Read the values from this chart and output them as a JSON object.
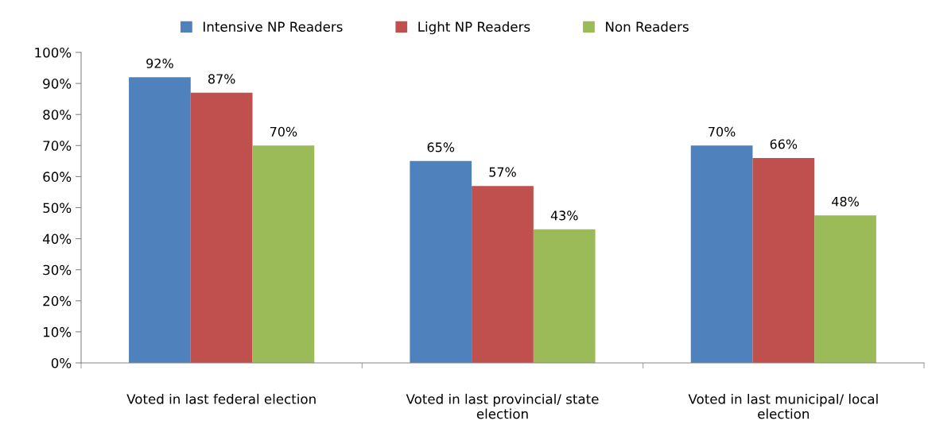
{
  "chart_data": {
    "type": "bar",
    "categories": [
      "Voted in last federal election",
      "Voted in last provincial/ state election",
      "Voted in last municipal/ local election"
    ],
    "series": [
      {
        "name": "Intensive NP Readers",
        "color": "#4f81bd",
        "values": [
          92,
          65,
          70
        ],
        "value_labels": [
          "92%",
          "65%",
          "70%"
        ]
      },
      {
        "name": "Light NP Readers",
        "color": "#c0504d",
        "values": [
          87,
          57,
          66
        ],
        "value_labels": [
          "87%",
          "57%",
          "66%"
        ]
      },
      {
        "name": "Non Readers",
        "color": "#9bbb59",
        "values": [
          70,
          43,
          47.5
        ],
        "value_labels": [
          "70%",
          "43%",
          "48%"
        ]
      }
    ],
    "ylim": [
      0,
      100
    ],
    "yticks": [
      {
        "value": 0,
        "label": "0%"
      },
      {
        "value": 10,
        "label": "10%"
      },
      {
        "value": 20,
        "label": "20%"
      },
      {
        "value": 30,
        "label": "30%"
      },
      {
        "value": 40,
        "label": "40%"
      },
      {
        "value": 50,
        "label": "50%"
      },
      {
        "value": 60,
        "label": "60%"
      },
      {
        "value": 70,
        "label": "70%"
      },
      {
        "value": 80,
        "label": "80%"
      },
      {
        "value": 90,
        "label": "90%"
      },
      {
        "value": 100,
        "label": "100%"
      }
    ],
    "grid": false,
    "legend": "top"
  }
}
